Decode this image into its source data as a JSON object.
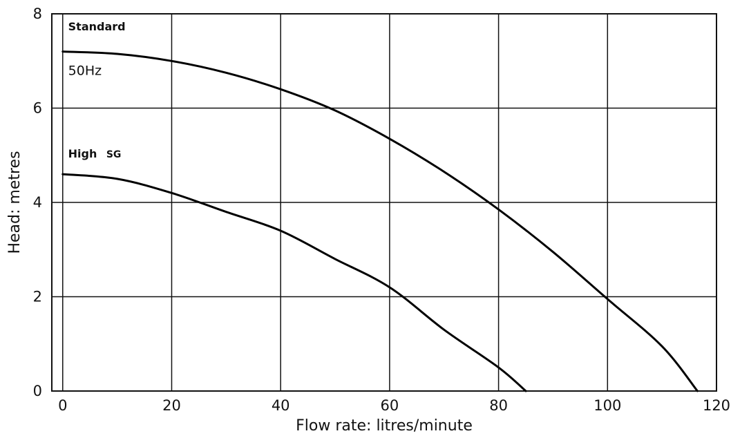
{
  "chart_data": {
    "type": "line",
    "title": "",
    "xlabel": "Flow rate: litres/minute",
    "ylabel": "Head: metres",
    "xlim": [
      -2,
      120
    ],
    "ylim": [
      0,
      8
    ],
    "x_ticks": [
      0,
      20,
      40,
      60,
      80,
      100,
      120
    ],
    "y_ticks": [
      0,
      2,
      4,
      6,
      8
    ],
    "grid": true,
    "series": [
      {
        "x": [
          0,
          10,
          20,
          30,
          40,
          50,
          60,
          70,
          80,
          90,
          100,
          110,
          116.5
        ],
        "y": [
          7.2,
          7.15,
          7.0,
          6.75,
          6.4,
          5.95,
          5.35,
          4.65,
          3.85,
          2.95,
          1.95,
          0.95,
          0.0
        ]
      },
      {
        "x": [
          0,
          10,
          20,
          30,
          40,
          50,
          60,
          70,
          80,
          85
        ],
        "y": [
          4.6,
          4.5,
          4.2,
          3.8,
          3.4,
          2.8,
          2.2,
          1.3,
          0.5,
          0.0
        ]
      }
    ],
    "annotations": [
      {
        "text": "Standard",
        "x": 1,
        "y": 7.65,
        "style": "bold"
      },
      {
        "text": "50Hz",
        "x": 1,
        "y": 6.7,
        "style": "normal"
      },
      {
        "text": "High",
        "x": 1,
        "y": 4.95,
        "style": "bold"
      },
      {
        "text": "SG",
        "x": 8,
        "y": 4.95,
        "style": "bold-small"
      }
    ]
  }
}
